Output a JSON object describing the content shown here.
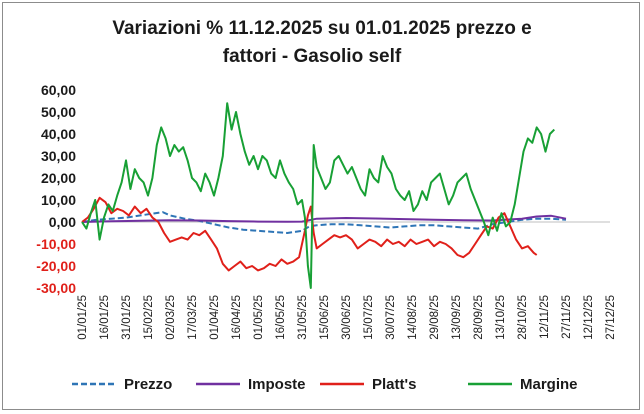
{
  "chart_data": {
    "type": "line",
    "title_lines": [
      "Variazioni % 11.12.2025 su 01.01.2025 prezzo e",
      "fattori - Gasolio self"
    ],
    "ylim": [
      -30,
      60
    ],
    "ytick_step": 10,
    "ytick_labels": [
      "60,00",
      "50,00",
      "40,00",
      "30,00",
      "20,00",
      "10,00",
      "0,00",
      "-10,00",
      "-20,00",
      "-30,00"
    ],
    "negative_tick_color": "#e0201a",
    "positive_tick_color": "#1a1a1a",
    "x_ticks": [
      "01/01/25",
      "16/01/25",
      "31/01/25",
      "15/02/25",
      "02/03/25",
      "17/03/25",
      "01/04/25",
      "16/04/25",
      "01/05/25",
      "16/05/25",
      "31/05/25",
      "15/06/25",
      "30/06/25",
      "15/07/25",
      "30/07/25",
      "14/08/25",
      "29/08/25",
      "13/09/25",
      "28/09/25",
      "13/10/25",
      "28/10/25",
      "12/11/25",
      "27/11/25",
      "12/12/25",
      "27/12/25"
    ],
    "x_range_days": [
      0,
      360
    ],
    "tick_interval_days": 15,
    "grid": false,
    "legend_position": "bottom",
    "series": [
      {
        "name": "Prezzo",
        "color": "#2e75b6",
        "dash": "6,3",
        "points": [
          [
            0,
            0
          ],
          [
            10,
            1
          ],
          [
            20,
            1.5
          ],
          [
            30,
            2
          ],
          [
            40,
            3
          ],
          [
            50,
            4
          ],
          [
            55,
            4.5
          ],
          [
            60,
            3
          ],
          [
            70,
            1.5
          ],
          [
            80,
            0.5
          ],
          [
            90,
            -1
          ],
          [
            100,
            -2.5
          ],
          [
            110,
            -3.5
          ],
          [
            120,
            -4
          ],
          [
            130,
            -4.5
          ],
          [
            140,
            -5
          ],
          [
            150,
            -4
          ],
          [
            155,
            -2
          ],
          [
            160,
            -1.5
          ],
          [
            170,
            -1
          ],
          [
            180,
            -1
          ],
          [
            190,
            -1.5
          ],
          [
            200,
            -2
          ],
          [
            210,
            -2.5
          ],
          [
            220,
            -2
          ],
          [
            230,
            -1.5
          ],
          [
            240,
            -1.5
          ],
          [
            250,
            -2
          ],
          [
            260,
            -2.5
          ],
          [
            270,
            -3
          ],
          [
            280,
            -1
          ],
          [
            290,
            0
          ],
          [
            300,
            1
          ],
          [
            310,
            1.5
          ],
          [
            320,
            1.5
          ],
          [
            330,
            1
          ]
        ]
      },
      {
        "name": "Imposte",
        "color": "#7030a0",
        "dash": "",
        "points": [
          [
            0,
            0
          ],
          [
            20,
            0.3
          ],
          [
            40,
            0.6
          ],
          [
            60,
            0.8
          ],
          [
            80,
            0.7
          ],
          [
            100,
            0.4
          ],
          [
            120,
            0.2
          ],
          [
            140,
            0.1
          ],
          [
            150,
            0.2
          ],
          [
            160,
            1.5
          ],
          [
            180,
            1.8
          ],
          [
            200,
            1.6
          ],
          [
            220,
            1.3
          ],
          [
            240,
            1
          ],
          [
            260,
            0.8
          ],
          [
            280,
            0.7
          ],
          [
            300,
            1.5
          ],
          [
            310,
            2.5
          ],
          [
            320,
            2.8
          ],
          [
            330,
            1.5
          ]
        ]
      },
      {
        "name": "Platt's",
        "color": "#e0201a",
        "dash": "",
        "points": [
          [
            0,
            0
          ],
          [
            4,
            2
          ],
          [
            8,
            6
          ],
          [
            12,
            11
          ],
          [
            16,
            9
          ],
          [
            20,
            4
          ],
          [
            24,
            6
          ],
          [
            28,
            5
          ],
          [
            32,
            3
          ],
          [
            36,
            7
          ],
          [
            40,
            4
          ],
          [
            44,
            6
          ],
          [
            48,
            2
          ],
          [
            52,
            0
          ],
          [
            56,
            -5
          ],
          [
            60,
            -9
          ],
          [
            64,
            -8
          ],
          [
            68,
            -7
          ],
          [
            72,
            -8
          ],
          [
            76,
            -5
          ],
          [
            80,
            -6
          ],
          [
            84,
            -4
          ],
          [
            88,
            -8
          ],
          [
            92,
            -12
          ],
          [
            96,
            -19
          ],
          [
            100,
            -22
          ],
          [
            104,
            -20
          ],
          [
            108,
            -18
          ],
          [
            112,
            -21
          ],
          [
            116,
            -20
          ],
          [
            120,
            -22
          ],
          [
            124,
            -21
          ],
          [
            128,
            -19
          ],
          [
            132,
            -20
          ],
          [
            136,
            -17
          ],
          [
            140,
            -19
          ],
          [
            144,
            -18
          ],
          [
            148,
            -16
          ],
          [
            152,
            -4
          ],
          [
            154,
            3
          ],
          [
            156,
            7
          ],
          [
            158,
            -5
          ],
          [
            160,
            -12
          ],
          [
            164,
            -10
          ],
          [
            168,
            -8
          ],
          [
            172,
            -6
          ],
          [
            176,
            -7
          ],
          [
            180,
            -6
          ],
          [
            184,
            -8
          ],
          [
            188,
            -12
          ],
          [
            192,
            -10
          ],
          [
            196,
            -8
          ],
          [
            200,
            -9
          ],
          [
            204,
            -11
          ],
          [
            208,
            -8
          ],
          [
            212,
            -10
          ],
          [
            216,
            -9
          ],
          [
            220,
            -11
          ],
          [
            224,
            -8
          ],
          [
            228,
            -10
          ],
          [
            232,
            -9
          ],
          [
            236,
            -8
          ],
          [
            240,
            -11
          ],
          [
            244,
            -9
          ],
          [
            248,
            -10
          ],
          [
            252,
            -12
          ],
          [
            256,
            -15
          ],
          [
            260,
            -16
          ],
          [
            264,
            -14
          ],
          [
            268,
            -10
          ],
          [
            272,
            -6
          ],
          [
            276,
            -2
          ],
          [
            280,
            -3
          ],
          [
            284,
            2
          ],
          [
            288,
            4
          ],
          [
            292,
            -2
          ],
          [
            296,
            -8
          ],
          [
            300,
            -12
          ],
          [
            304,
            -11
          ],
          [
            308,
            -14
          ],
          [
            310,
            -15
          ]
        ]
      },
      {
        "name": "Margine",
        "color": "#18a035",
        "dash": "",
        "points": [
          [
            0,
            0
          ],
          [
            3,
            -3
          ],
          [
            6,
            4
          ],
          [
            9,
            10
          ],
          [
            12,
            -8
          ],
          [
            15,
            2
          ],
          [
            18,
            8
          ],
          [
            21,
            5
          ],
          [
            24,
            12
          ],
          [
            27,
            18
          ],
          [
            30,
            28
          ],
          [
            33,
            15
          ],
          [
            36,
            24
          ],
          [
            39,
            20
          ],
          [
            42,
            18
          ],
          [
            45,
            12
          ],
          [
            48,
            20
          ],
          [
            51,
            35
          ],
          [
            54,
            43
          ],
          [
            57,
            38
          ],
          [
            60,
            30
          ],
          [
            63,
            35
          ],
          [
            66,
            32
          ],
          [
            69,
            34
          ],
          [
            72,
            28
          ],
          [
            75,
            20
          ],
          [
            78,
            18
          ],
          [
            81,
            14
          ],
          [
            84,
            22
          ],
          [
            87,
            18
          ],
          [
            90,
            12
          ],
          [
            93,
            20
          ],
          [
            96,
            30
          ],
          [
            99,
            54
          ],
          [
            102,
            42
          ],
          [
            105,
            50
          ],
          [
            108,
            40
          ],
          [
            111,
            32
          ],
          [
            114,
            26
          ],
          [
            117,
            30
          ],
          [
            120,
            24
          ],
          [
            123,
            30
          ],
          [
            126,
            28
          ],
          [
            129,
            22
          ],
          [
            132,
            20
          ],
          [
            135,
            28
          ],
          [
            138,
            22
          ],
          [
            141,
            18
          ],
          [
            144,
            15
          ],
          [
            147,
            8
          ],
          [
            150,
            10
          ],
          [
            152,
            2
          ],
          [
            154,
            -20
          ],
          [
            156,
            -30
          ],
          [
            158,
            35
          ],
          [
            160,
            25
          ],
          [
            163,
            20
          ],
          [
            166,
            15
          ],
          [
            169,
            18
          ],
          [
            172,
            28
          ],
          [
            175,
            30
          ],
          [
            178,
            26
          ],
          [
            181,
            22
          ],
          [
            184,
            25
          ],
          [
            187,
            20
          ],
          [
            190,
            15
          ],
          [
            193,
            12
          ],
          [
            196,
            24
          ],
          [
            199,
            20
          ],
          [
            202,
            18
          ],
          [
            205,
            30
          ],
          [
            208,
            25
          ],
          [
            211,
            22
          ],
          [
            214,
            15
          ],
          [
            217,
            12
          ],
          [
            220,
            10
          ],
          [
            223,
            14
          ],
          [
            226,
            5
          ],
          [
            229,
            8
          ],
          [
            232,
            14
          ],
          [
            235,
            10
          ],
          [
            238,
            18
          ],
          [
            241,
            20
          ],
          [
            244,
            22
          ],
          [
            247,
            15
          ],
          [
            250,
            8
          ],
          [
            253,
            12
          ],
          [
            256,
            18
          ],
          [
            259,
            20
          ],
          [
            262,
            22
          ],
          [
            265,
            15
          ],
          [
            268,
            10
          ],
          [
            271,
            5
          ],
          [
            274,
            0
          ],
          [
            277,
            -6
          ],
          [
            280,
            2
          ],
          [
            283,
            -4
          ],
          [
            286,
            4
          ],
          [
            289,
            -2
          ],
          [
            292,
            0
          ],
          [
            295,
            8
          ],
          [
            298,
            20
          ],
          [
            301,
            32
          ],
          [
            304,
            38
          ],
          [
            307,
            36
          ],
          [
            310,
            43
          ],
          [
            313,
            40
          ],
          [
            316,
            32
          ],
          [
            319,
            40
          ],
          [
            322,
            42
          ]
        ]
      }
    ]
  }
}
